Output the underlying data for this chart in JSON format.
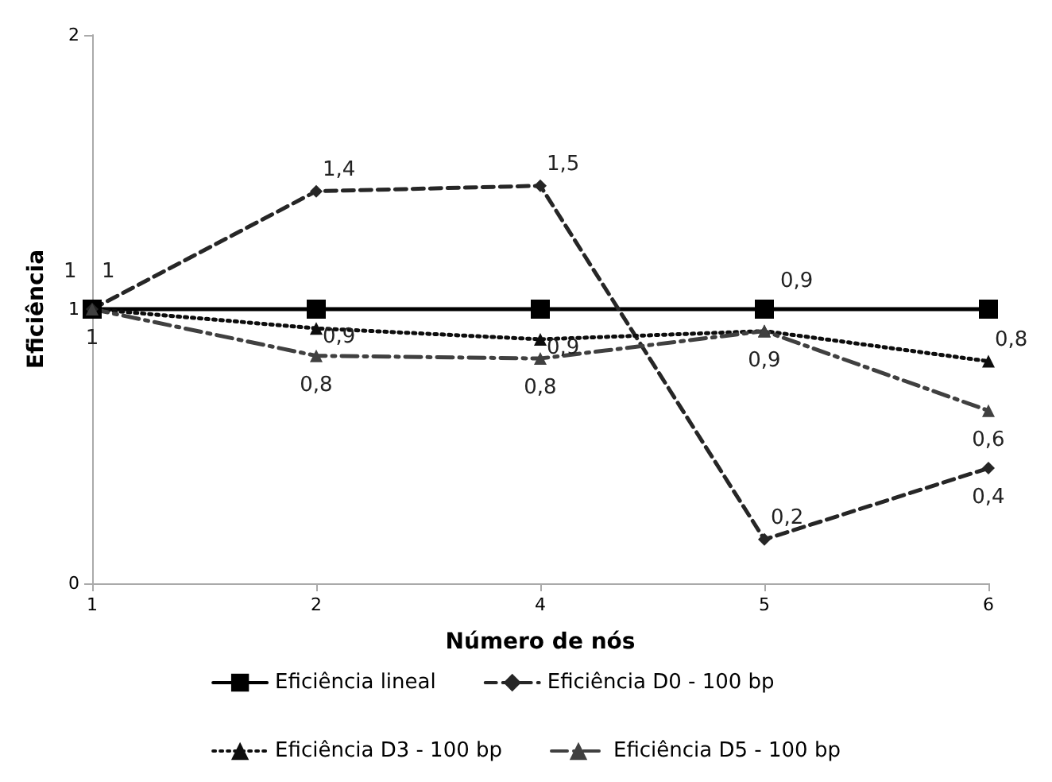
{
  "chart_data": {
    "type": "line",
    "xlabel": "Número de nós",
    "ylabel": "Eficiência",
    "categories": [
      "1",
      "2",
      "4",
      "5",
      "6"
    ],
    "ylim": [
      0,
      2
    ],
    "yticks": [
      0,
      1,
      2
    ],
    "grid": false,
    "legend": "bottom",
    "series": [
      {
        "name": "Eficiência lineal",
        "color": "#000000",
        "marker": "square",
        "line_style": "solid",
        "values": [
          1,
          1,
          1,
          1,
          1
        ]
      },
      {
        "name": "Eficiência D0 - 100 bp",
        "color": "#262626",
        "marker": "diamond",
        "line_style": "dashed",
        "values": [
          1,
          1.43,
          1.45,
          0.16,
          0.42
        ],
        "value_labels": [
          "1",
          "1,4",
          "1,5",
          "0,2",
          "0,4"
        ]
      },
      {
        "name": "Eficiência D3 - 100 bp",
        "color": "#0d0d0d",
        "marker": "triangle",
        "line_style": "dotted",
        "values": [
          1,
          0.93,
          0.89,
          0.92,
          0.81
        ],
        "value_labels": [
          "1",
          "0,9",
          "0,9",
          "0,9",
          "0,8"
        ]
      },
      {
        "name": "Eficiência D5 - 100 bp",
        "color": "#404040",
        "marker": "triangle",
        "line_style": "dashdot",
        "values": [
          1,
          0.83,
          0.82,
          0.92,
          0.63
        ],
        "value_labels": [
          "1",
          "0,8",
          "0,8",
          "0,9",
          "0,6"
        ]
      }
    ]
  }
}
